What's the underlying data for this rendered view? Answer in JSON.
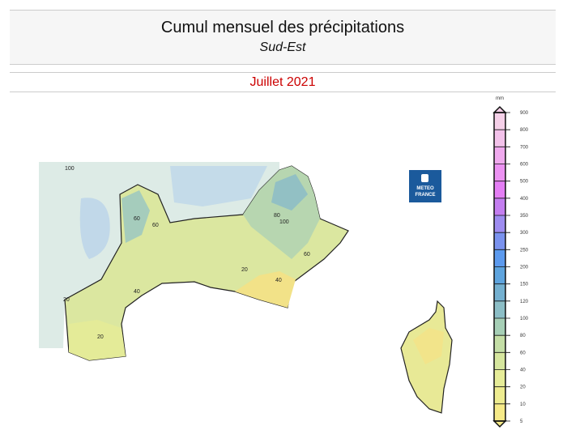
{
  "header": {
    "title": "Cumul mensuel des précipitations",
    "region": "Sud-Est",
    "period": "Juillet 2021"
  },
  "logo": {
    "line1": "METEO",
    "line2": "FRANCE",
    "color": "#1b5a9c"
  },
  "legend": {
    "unit": "mm",
    "ticks": [
      "900",
      "800",
      "700",
      "600",
      "500",
      "400",
      "350",
      "300",
      "250",
      "200",
      "150",
      "120",
      "100",
      "80",
      "60",
      "40",
      "20",
      "10",
      "5"
    ],
    "colors": [
      "#f5d0e8",
      "#f3c2ea",
      "#f0aaee",
      "#ec92f2",
      "#e47ef4",
      "#c47ef0",
      "#9e8cf0",
      "#7a92ee",
      "#5c9aee",
      "#5ea4de",
      "#74b0d0",
      "#8cbec6",
      "#a6cfb6",
      "#c4dea6",
      "#d6e69e",
      "#e6ec98",
      "#eeec90",
      "#f6ea88"
    ]
  },
  "contour_labels": [
    "60",
    "20",
    "40",
    "80",
    "100",
    "60",
    "20",
    "40",
    "20",
    "60",
    "100"
  ]
}
